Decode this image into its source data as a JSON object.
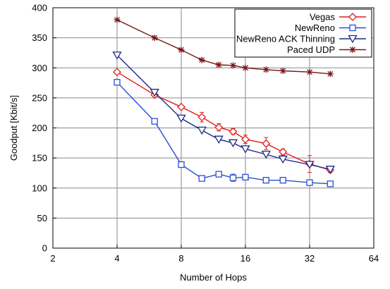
{
  "chart_data": {
    "type": "line",
    "title": "",
    "xlabel": "Number of Hops",
    "ylabel": "Goodput [Kbit/s]",
    "xscale": "log2",
    "xlim": [
      2,
      64
    ],
    "ylim": [
      0,
      400
    ],
    "x_ticks": [
      2,
      4,
      8,
      16,
      32,
      64
    ],
    "y_ticks": [
      0,
      50,
      100,
      150,
      200,
      250,
      300,
      350,
      400
    ],
    "grid": true,
    "legend_position": "top-right",
    "series": [
      {
        "name": "Vegas",
        "color": "#e41a1a",
        "marker": "diamond",
        "x": [
          4,
          6,
          8,
          10,
          12,
          14,
          16,
          20,
          24,
          32,
          40
        ],
        "y": [
          293,
          255,
          235,
          218,
          201,
          194,
          181,
          174,
          160,
          140,
          130
        ],
        "err": [
          0,
          0,
          0,
          8,
          6,
          5,
          7,
          10,
          5,
          14,
          4
        ]
      },
      {
        "name": "NewReno",
        "color": "#2a4fd6",
        "marker": "square",
        "x": [
          4,
          6,
          8,
          10,
          12,
          14,
          16,
          20,
          24,
          32,
          40
        ],
        "y": [
          276,
          211,
          139,
          116,
          123,
          117,
          118,
          113,
          113,
          109,
          107
        ],
        "err": [
          0,
          0,
          0,
          4,
          4,
          6,
          4,
          3,
          3,
          0,
          0
        ]
      },
      {
        "name": "NewReno ACK Thinning",
        "color": "#1c2a86",
        "marker": "triangle-down",
        "x": [
          4,
          6,
          8,
          10,
          12,
          14,
          16,
          20,
          24,
          32,
          40
        ],
        "y": [
          321,
          259,
          216,
          196,
          181,
          175,
          165,
          156,
          148,
          139,
          131
        ],
        "err": [
          0,
          0,
          0,
          0,
          0,
          0,
          0,
          0,
          0,
          0,
          0
        ]
      },
      {
        "name": "Paced UDP",
        "color": "#7a1616",
        "marker": "asterisk",
        "x": [
          4,
          6,
          8,
          10,
          12,
          14,
          16,
          20,
          24,
          32,
          40
        ],
        "y": [
          380,
          350,
          330,
          313,
          305,
          304,
          300,
          297,
          295,
          293,
          290
        ],
        "err": [
          0,
          0,
          0,
          0,
          0,
          0,
          0,
          0,
          0,
          0,
          0
        ]
      }
    ]
  }
}
